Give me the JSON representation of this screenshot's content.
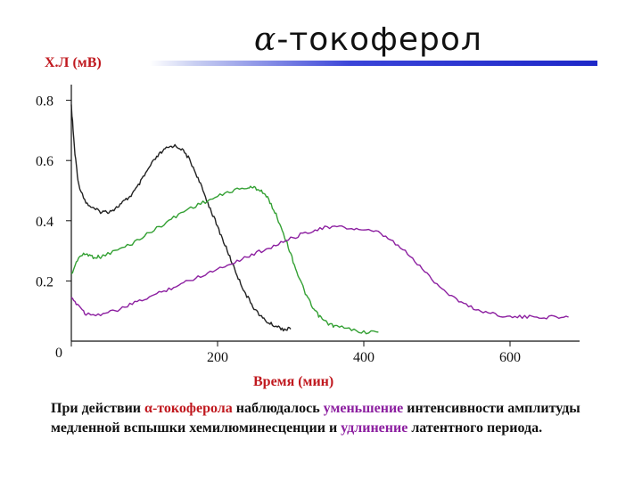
{
  "slide": {
    "title_symbol": "α",
    "title_text": "-токоферол",
    "caption": {
      "part1": "При действии ",
      "part2": "α-токоферола",
      "part3": " наблюдалось ",
      "part4": "уменьшение",
      "part5": " интенсивности амплитуды медленной вспышки хемилюминесценции и ",
      "part6": "удлинение",
      "part7": " латентного периода."
    }
  },
  "chart_data": {
    "type": "line",
    "title": "",
    "xlabel": "Время (мин)",
    "ylabel": "Х.Л (мВ)",
    "xlim": [
      0,
      700
    ],
    "ylim": [
      0,
      0.85
    ],
    "x_ticks": [
      0,
      200,
      400,
      600
    ],
    "x_tick_labels": [
      "0",
      "200",
      "400",
      "600"
    ],
    "y_ticks": [
      0.2,
      0.4,
      0.6,
      0.8
    ],
    "y_tick_labels": [
      "0.2",
      "0.4",
      "0.6",
      "0.8"
    ],
    "grid": false,
    "series": [
      {
        "color": "#222222",
        "x": [
          0,
          5,
          10,
          20,
          30,
          40,
          50,
          60,
          70,
          80,
          90,
          100,
          110,
          120,
          130,
          140,
          150,
          160,
          170,
          180,
          190,
          200,
          210,
          220,
          230,
          240,
          250,
          260,
          270,
          280,
          290,
          300
        ],
        "y": [
          0.78,
          0.62,
          0.52,
          0.46,
          0.44,
          0.43,
          0.43,
          0.44,
          0.46,
          0.48,
          0.51,
          0.55,
          0.59,
          0.62,
          0.64,
          0.65,
          0.64,
          0.61,
          0.56,
          0.5,
          0.44,
          0.38,
          0.32,
          0.26,
          0.2,
          0.15,
          0.11,
          0.08,
          0.06,
          0.05,
          0.04,
          0.04
        ]
      },
      {
        "color": "#33a033",
        "x": [
          0,
          10,
          20,
          30,
          40,
          60,
          80,
          100,
          120,
          140,
          160,
          180,
          200,
          220,
          240,
          250,
          260,
          270,
          280,
          290,
          300,
          310,
          320,
          330,
          340,
          350,
          360,
          380,
          400,
          420
        ],
        "y": [
          0.22,
          0.28,
          0.29,
          0.28,
          0.28,
          0.3,
          0.32,
          0.35,
          0.38,
          0.41,
          0.44,
          0.46,
          0.48,
          0.5,
          0.51,
          0.51,
          0.5,
          0.47,
          0.42,
          0.36,
          0.29,
          0.22,
          0.16,
          0.11,
          0.08,
          0.06,
          0.05,
          0.04,
          0.03,
          0.03
        ]
      },
      {
        "color": "#8c1fa0",
        "x": [
          0,
          10,
          20,
          40,
          60,
          80,
          100,
          120,
          140,
          160,
          180,
          200,
          220,
          240,
          260,
          280,
          300,
          320,
          340,
          360,
          380,
          400,
          420,
          440,
          460,
          480,
          500,
          520,
          540,
          560,
          580,
          600,
          620,
          640,
          660,
          680
        ],
        "y": [
          0.14,
          0.12,
          0.09,
          0.09,
          0.1,
          0.12,
          0.14,
          0.16,
          0.18,
          0.2,
          0.22,
          0.24,
          0.26,
          0.28,
          0.3,
          0.32,
          0.34,
          0.36,
          0.375,
          0.38,
          0.375,
          0.37,
          0.36,
          0.33,
          0.29,
          0.24,
          0.19,
          0.15,
          0.12,
          0.1,
          0.09,
          0.08,
          0.08,
          0.08,
          0.08,
          0.08
        ]
      }
    ]
  }
}
